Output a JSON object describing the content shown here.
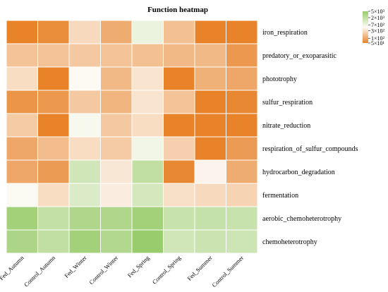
{
  "chart_data": {
    "type": "heatmap",
    "title": "Function heatmap",
    "columns": [
      "Fed_Autumn",
      "Control_Autumn",
      "Fed_Winter",
      "Control_Winter",
      "Fed_Spring",
      "Control_Spring",
      "Fed_Summer",
      "Control_Summer"
    ],
    "rows": [
      "iron_respiration",
      "predatory_or_exoparasitic",
      "phototrophy",
      "sulfur_respiration",
      "nitrate_reduction",
      "respiration_of_sulfur_compounds",
      "hydrocarbon_degradation",
      "fermentation",
      "aerobic_chemoheterotrophy",
      "chemoheterotrophy"
    ],
    "values": [
      [
        40,
        60,
        260,
        110,
        750,
        160,
        25,
        45
      ],
      [
        170,
        170,
        190,
        170,
        160,
        140,
        140,
        75
      ],
      [
        280,
        50,
        480,
        140,
        320,
        30,
        120,
        100
      ],
      [
        70,
        75,
        190,
        130,
        320,
        170,
        20,
        55
      ],
      [
        200,
        50,
        580,
        190,
        280,
        20,
        40,
        35
      ],
      [
        100,
        150,
        280,
        200,
        650,
        220,
        25,
        80
      ],
      [
        100,
        80,
        1400,
        340,
        2000,
        55,
        440,
        110
      ],
      [
        530,
        280,
        1100,
        380,
        1300,
        290,
        260,
        230
      ],
      [
        4000,
        1900,
        3000,
        3000,
        4000,
        1700,
        1800,
        1700
      ],
      [
        3200,
        2000,
        4000,
        2800,
        5000,
        1400,
        1600,
        1500
      ]
    ],
    "color_scale": {
      "scale": "log",
      "min": 50,
      "max": 5000,
      "low_color": "#e8832a",
      "mid_color": "#fdfbf7",
      "high_color": "#99cc6c",
      "ticks": [
        5000,
        2000,
        700,
        300,
        100,
        50
      ],
      "tick_labels": [
        "5×10³",
        "2×10³",
        "7×10²",
        "3×10²",
        "1×10²",
        "5×10¹"
      ]
    }
  }
}
